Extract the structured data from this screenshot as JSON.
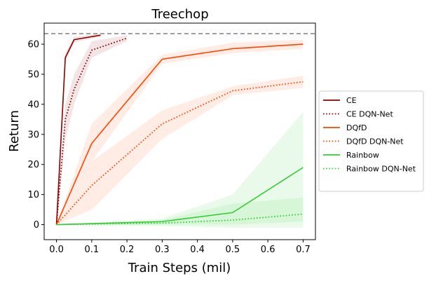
{
  "chart_data": {
    "type": "line",
    "title": "Treechop",
    "xlabel": "Train Steps (mil)",
    "ylabel": "Return",
    "xlim": [
      -0.035,
      0.735
    ],
    "ylim": [
      -5,
      67
    ],
    "xticks": [
      0.0,
      0.1,
      0.2,
      0.3,
      0.4,
      0.5,
      0.6,
      0.7
    ],
    "xtick_labels": [
      "0.0",
      "0.1",
      "0.2",
      "0.3",
      "0.4",
      "0.5",
      "0.6",
      "0.7"
    ],
    "yticks": [
      0,
      10,
      20,
      30,
      40,
      50,
      60
    ],
    "ytick_labels": [
      "0",
      "10",
      "20",
      "30",
      "40",
      "50",
      "60"
    ],
    "reference_line": {
      "y": 63.5,
      "color": "#808080",
      "style": "dashed"
    },
    "legend_position": "right, outside",
    "series": [
      {
        "name": "CE",
        "color": "#8b0000",
        "style": "solid",
        "x": [
          0,
          0.025,
          0.05,
          0.125
        ],
        "y": [
          0,
          55.5,
          61.5,
          63
        ],
        "band_lower": [
          0,
          54,
          60.5,
          62.5
        ],
        "band_upper": [
          0,
          57,
          62.5,
          63.5
        ],
        "band_color": "#8b0000"
      },
      {
        "name": "CE DQN-Net",
        "color": "#8b0000",
        "style": "dotted",
        "x": [
          0,
          0.025,
          0.05,
          0.1,
          0.2
        ],
        "y": [
          0,
          35,
          45,
          58,
          62
        ],
        "band_lower": [
          0,
          28,
          40,
          55.5,
          61
        ],
        "band_upper": [
          0,
          40,
          50,
          61,
          63
        ],
        "band_color": "#8b0000"
      },
      {
        "name": "DQfD",
        "color": "#ff4500",
        "style": "solid",
        "x": [
          0,
          0.1,
          0.3,
          0.5,
          0.7
        ],
        "y": [
          0,
          27,
          55,
          58.5,
          60
        ],
        "band_lower": [
          0,
          21,
          53.5,
          57,
          58.5
        ],
        "band_upper": [
          0,
          33.5,
          56.5,
          60.5,
          61.5
        ],
        "band_color": "#ff4500"
      },
      {
        "name": "DQfD DQN-Net",
        "color": "#ff4500",
        "style": "dotted",
        "x": [
          0,
          0.1,
          0.3,
          0.5,
          0.7
        ],
        "y": [
          0,
          13,
          33.5,
          44.5,
          47.5
        ],
        "band_lower": [
          0,
          5,
          28.5,
          43,
          45.5
        ],
        "band_upper": [
          0,
          21,
          38,
          46,
          49.5
        ],
        "band_color": "#ff4500"
      },
      {
        "name": "Rainbow",
        "color": "#32cd32",
        "style": "solid",
        "x": [
          0,
          0.3,
          0.5,
          0.7
        ],
        "y": [
          0,
          1,
          4,
          19
        ],
        "band_lower": [
          0,
          0,
          0,
          1
        ],
        "band_upper": [
          0,
          2,
          10,
          37.5
        ],
        "band_color": "#32cd32"
      },
      {
        "name": "Rainbow DQN-Net",
        "color": "#32cd32",
        "style": "dotted",
        "x": [
          0,
          0.3,
          0.5,
          0.7
        ],
        "y": [
          0,
          0.5,
          1.5,
          3.5
        ],
        "band_lower": [
          0,
          -0.5,
          -1,
          -1
        ],
        "band_upper": [
          0,
          1.5,
          7,
          9
        ],
        "band_color": "#32cd32"
      }
    ]
  }
}
